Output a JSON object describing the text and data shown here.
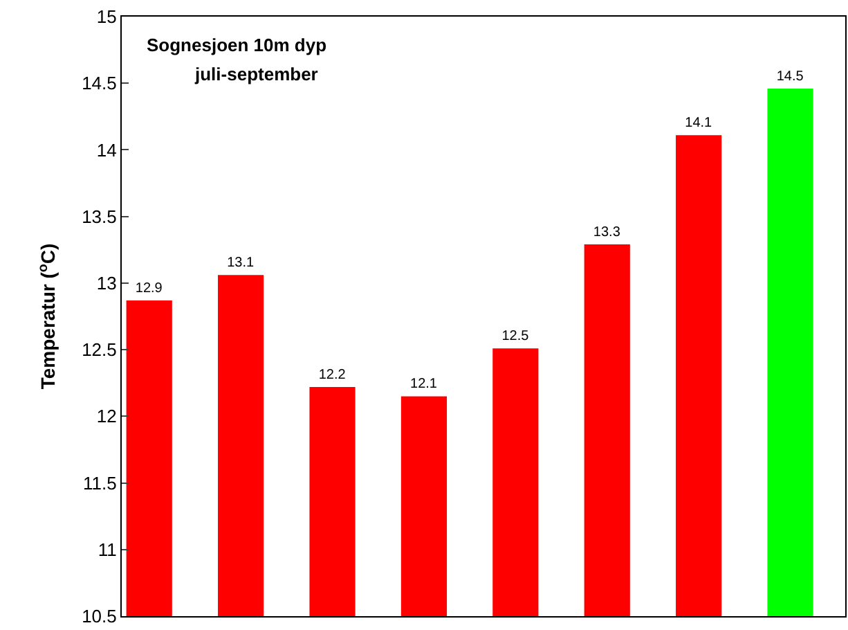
{
  "chart_data": {
    "type": "bar",
    "title": "Sognesjoen 10m dyp",
    "subtitle": "juli-september",
    "ylabel": "Temperatur ($^{o}$C)",
    "categories": [
      null,
      null,
      null,
      null,
      null,
      null,
      null,
      null
    ],
    "values": [
      12.87,
      13.06,
      12.22,
      12.15,
      12.51,
      13.29,
      14.11,
      14.46
    ],
    "colors": [
      "#ff0000",
      "#ff0000",
      "#ff0000",
      "#ff0000",
      "#ff0000",
      "#ff0000",
      "#ff0000",
      "#00ff00"
    ],
    "value_labels": [
      "12.9",
      "13.1",
      "12.2",
      "12.1",
      "12.5",
      "13.3",
      "14.1",
      "14.5"
    ],
    "ylim": [
      10.5,
      15
    ],
    "yticks": [
      10.5,
      11,
      11.5,
      12,
      12.5,
      13,
      13.5,
      14,
      14.5,
      15
    ]
  }
}
